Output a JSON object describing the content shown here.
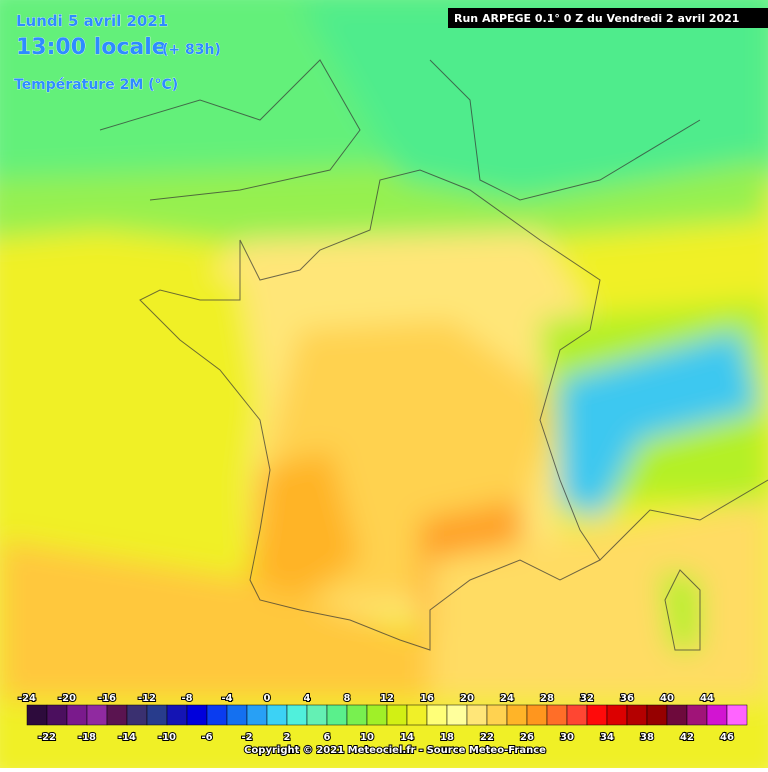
{
  "header": {
    "date": "Lundi 5 avril 2021",
    "time": "13:00 locale",
    "offset": "(+ 83h)",
    "variable": "Température 2M (°C)"
  },
  "run": "Run ARPEGE 0.1° 0 Z du Vendredi 2 avril 2021",
  "legend": {
    "top_labels": [
      -24,
      -20,
      -16,
      -12,
      -8,
      -4,
      0,
      4,
      8,
      12,
      16,
      20,
      24,
      28,
      32,
      36,
      40,
      44
    ],
    "bottom_labels": [
      -22,
      -18,
      -14,
      -10,
      -6,
      -2,
      2,
      6,
      10,
      14,
      18,
      22,
      26,
      30,
      34,
      38,
      42,
      46
    ],
    "colors": [
      "#2d0b3c",
      "#4b0f5e",
      "#7a1a8c",
      "#902aa0",
      "#5a1450",
      "#3a3070",
      "#283c8c",
      "#1414b4",
      "#0000dc",
      "#0a3cf0",
      "#1470f0",
      "#28a0f5",
      "#3cd2f5",
      "#50f0dc",
      "#64f0b4",
      "#5af08c",
      "#78f050",
      "#a0f028",
      "#d2f014",
      "#f0f028",
      "#ffff78",
      "#ffff9c",
      "#ffe678",
      "#ffd250",
      "#ffb428",
      "#ff961e",
      "#ff6e28",
      "#ff4632",
      "#ff0a0a",
      "#dc0000",
      "#b40000",
      "#960000",
      "#6e0a3c",
      "#a01478",
      "#d214d2",
      "#ff64ff"
    ]
  },
  "copyright": "Copyright © 2021 Meteociel.fr - Source Meteo-France"
}
